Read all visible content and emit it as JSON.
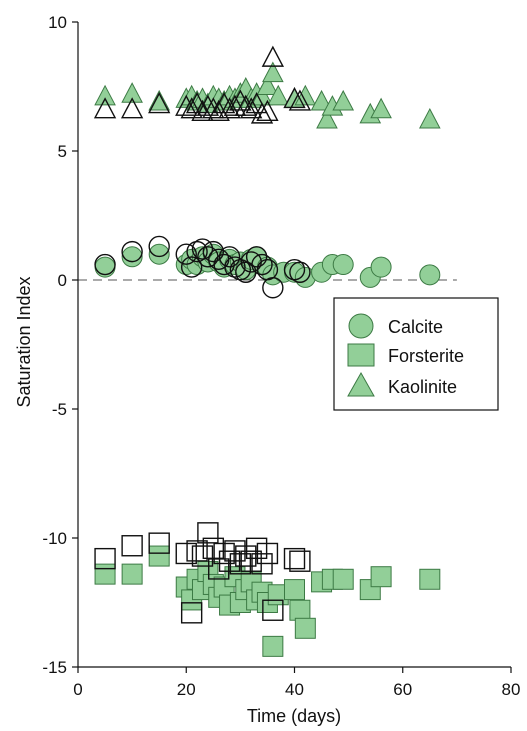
{
  "chart_data": {
    "type": "scatter",
    "xlabel": "Time (days)",
    "ylabel": "Saturation Index",
    "xlim": [
      0,
      80
    ],
    "ylim": [
      -15,
      10
    ],
    "x_ticks": [
      "0",
      "20",
      "40",
      "60",
      "80"
    ],
    "y_ticks": [
      "10",
      "5",
      "0",
      "-5",
      "-10",
      "-15"
    ],
    "grid": false,
    "reference_line": {
      "y": 0,
      "style": "dashed"
    },
    "legend": {
      "placement": "right-middle",
      "entries": [
        {
          "label": "Calcite",
          "marker": "circle"
        },
        {
          "label": "Forsterite",
          "marker": "square"
        },
        {
          "label": "Kaolinite",
          "marker": "triangle"
        }
      ]
    },
    "colors": {
      "fill": "#92cf98",
      "stroke": "#3c7a44",
      "open_stroke": "#111111"
    },
    "series": [
      {
        "marker": "triangle",
        "fill": "filled",
        "points": [
          [
            5,
            7.1
          ],
          [
            10,
            7.2
          ],
          [
            15,
            6.9
          ],
          [
            20,
            7.0
          ],
          [
            21,
            7.1
          ],
          [
            22,
            6.9
          ],
          [
            23,
            7.0
          ],
          [
            24,
            6.8
          ],
          [
            25,
            7.1
          ],
          [
            26,
            7.0
          ],
          [
            27,
            6.9
          ],
          [
            28,
            7.1
          ],
          [
            29,
            7.0
          ],
          [
            30,
            7.2
          ],
          [
            31,
            7.4
          ],
          [
            32,
            7.0
          ],
          [
            33,
            7.2
          ],
          [
            34,
            7.1
          ],
          [
            35,
            7.5
          ],
          [
            36,
            8.0
          ],
          [
            37,
            7.1
          ],
          [
            40,
            7.0
          ],
          [
            42,
            7.1
          ],
          [
            45,
            6.9
          ],
          [
            46,
            6.2
          ],
          [
            47,
            6.7
          ],
          [
            49,
            6.9
          ],
          [
            54,
            6.4
          ],
          [
            56,
            6.6
          ],
          [
            65,
            6.2
          ]
        ]
      },
      {
        "marker": "triangle",
        "fill": "open",
        "points": [
          [
            5,
            6.6
          ],
          [
            10,
            6.6
          ],
          [
            15,
            6.8
          ],
          [
            20,
            6.7
          ],
          [
            21,
            6.6
          ],
          [
            22,
            6.8
          ],
          [
            23,
            6.5
          ],
          [
            24,
            6.7
          ],
          [
            25,
            6.6
          ],
          [
            26,
            6.5
          ],
          [
            27,
            6.8
          ],
          [
            28,
            6.6
          ],
          [
            29,
            6.7
          ],
          [
            30,
            6.9
          ],
          [
            31,
            6.7
          ],
          [
            32,
            6.6
          ],
          [
            33,
            6.8
          ],
          [
            34,
            6.4
          ],
          [
            35,
            6.5
          ],
          [
            36,
            8.6
          ],
          [
            40,
            7.0
          ],
          [
            41,
            6.9
          ]
        ]
      },
      {
        "marker": "circle",
        "fill": "filled",
        "points": [
          [
            5,
            0.5
          ],
          [
            10,
            0.9
          ],
          [
            15,
            1.0
          ],
          [
            20,
            0.6
          ],
          [
            21,
            0.8
          ],
          [
            22,
            0.6
          ],
          [
            23,
            0.9
          ],
          [
            24,
            0.7
          ],
          [
            25,
            1.0
          ],
          [
            26,
            0.7
          ],
          [
            27,
            0.5
          ],
          [
            28,
            0.8
          ],
          [
            29,
            0.6
          ],
          [
            30,
            0.7
          ],
          [
            31,
            0.4
          ],
          [
            32,
            0.8
          ],
          [
            33,
            0.9
          ],
          [
            34,
            0.6
          ],
          [
            35,
            0.5
          ],
          [
            36,
            0.2
          ],
          [
            38,
            0.3
          ],
          [
            40,
            0.3
          ],
          [
            42,
            0.1
          ],
          [
            45,
            0.3
          ],
          [
            47,
            0.6
          ],
          [
            49,
            0.6
          ],
          [
            54,
            0.1
          ],
          [
            56,
            0.5
          ],
          [
            65,
            0.2
          ]
        ]
      },
      {
        "marker": "circle",
        "fill": "open",
        "points": [
          [
            5,
            0.6
          ],
          [
            10,
            1.1
          ],
          [
            15,
            1.3
          ],
          [
            20,
            1.0
          ],
          [
            21,
            0.5
          ],
          [
            22,
            1.1
          ],
          [
            23,
            1.2
          ],
          [
            24,
            0.9
          ],
          [
            25,
            1.1
          ],
          [
            26,
            0.8
          ],
          [
            27,
            0.6
          ],
          [
            28,
            0.9
          ],
          [
            29,
            0.5
          ],
          [
            30,
            0.4
          ],
          [
            31,
            0.3
          ],
          [
            32,
            0.7
          ],
          [
            33,
            0.9
          ],
          [
            34,
            0.6
          ],
          [
            35,
            0.4
          ],
          [
            36,
            -0.3
          ],
          [
            40,
            0.4
          ],
          [
            41,
            0.3
          ]
        ]
      },
      {
        "marker": "square",
        "fill": "filled",
        "points": [
          [
            5,
            -11.4
          ],
          [
            10,
            -11.4
          ],
          [
            15,
            -10.7
          ],
          [
            20,
            -11.9
          ],
          [
            21,
            -12.4
          ],
          [
            22,
            -11.6
          ],
          [
            23,
            -12.0
          ],
          [
            24,
            -11.3
          ],
          [
            25,
            -11.8
          ],
          [
            26,
            -12.3
          ],
          [
            27,
            -11.9
          ],
          [
            28,
            -12.6
          ],
          [
            29,
            -11.5
          ],
          [
            30,
            -12.5
          ],
          [
            31,
            -12.0
          ],
          [
            32,
            -11.7
          ],
          [
            33,
            -12.4
          ],
          [
            34,
            -12.1
          ],
          [
            35,
            -12.5
          ],
          [
            36,
            -14.2
          ],
          [
            37,
            -12.2
          ],
          [
            40,
            -12.0
          ],
          [
            41,
            -12.8
          ],
          [
            42,
            -13.5
          ],
          [
            45,
            -11.7
          ],
          [
            47,
            -11.6
          ],
          [
            49,
            -11.6
          ],
          [
            54,
            -12.0
          ],
          [
            56,
            -11.5
          ],
          [
            65,
            -11.6
          ]
        ]
      },
      {
        "marker": "square",
        "fill": "open",
        "points": [
          [
            5,
            -10.8
          ],
          [
            10,
            -10.3
          ],
          [
            15,
            -10.2
          ],
          [
            20,
            -10.6
          ],
          [
            21,
            -12.9
          ],
          [
            22,
            -10.5
          ],
          [
            23,
            -10.7
          ],
          [
            24,
            -9.8
          ],
          [
            25,
            -10.4
          ],
          [
            26,
            -11.2
          ],
          [
            27,
            -10.6
          ],
          [
            28,
            -10.9
          ],
          [
            29,
            -10.5
          ],
          [
            30,
            -11.0
          ],
          [
            31,
            -10.7
          ],
          [
            32,
            -10.9
          ],
          [
            33,
            -10.4
          ],
          [
            34,
            -11.0
          ],
          [
            35,
            -10.6
          ],
          [
            36,
            -12.8
          ],
          [
            40,
            -10.8
          ],
          [
            41,
            -10.9
          ]
        ]
      }
    ]
  }
}
